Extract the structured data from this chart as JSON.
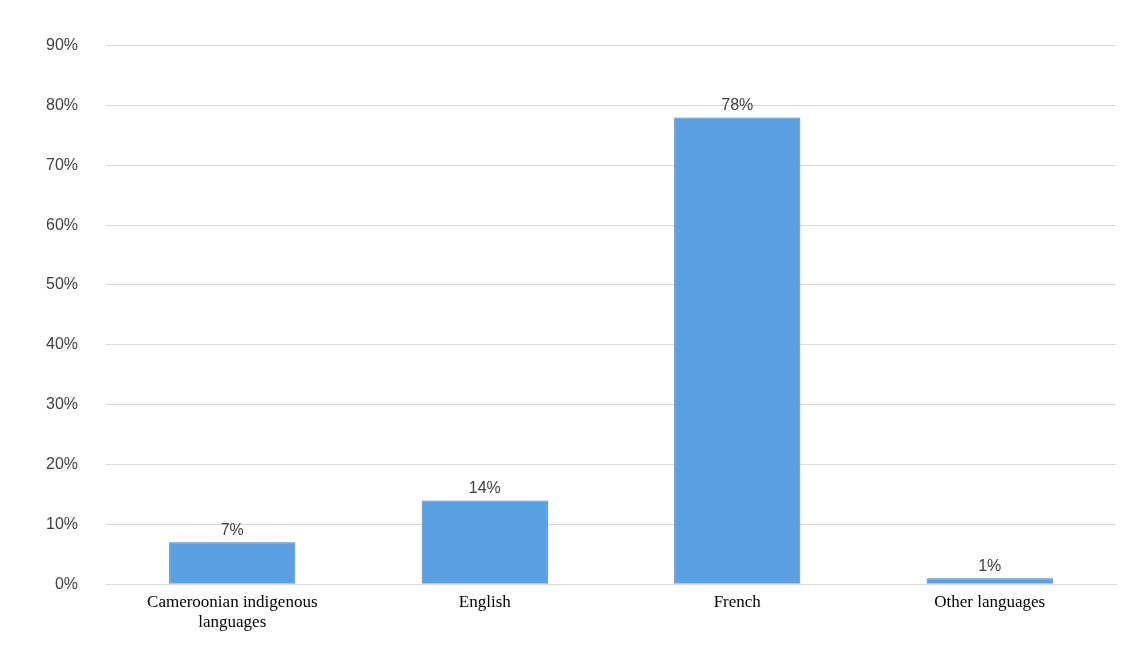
{
  "chart_data": {
    "type": "bar",
    "categories": [
      "Cameroonian indigenous languages",
      "English",
      "French",
      "Other languages"
    ],
    "values": [
      7,
      14,
      78,
      1
    ],
    "color": "#5a9fe0",
    "value_labels": [
      "7%",
      "14%",
      "78%",
      "1%"
    ],
    "ylim": [
      0,
      90
    ],
    "yticks": [
      {
        "value": 0,
        "label": "0%"
      },
      {
        "value": 10,
        "label": "10%"
      },
      {
        "value": 20,
        "label": "20%"
      },
      {
        "value": 30,
        "label": "30%"
      },
      {
        "value": 40,
        "label": "40%"
      },
      {
        "value": 50,
        "label": "50%"
      },
      {
        "value": 60,
        "label": "60%"
      },
      {
        "value": 70,
        "label": "70%"
      },
      {
        "value": 80,
        "label": "80%"
      },
      {
        "value": 90,
        "label": "90%"
      }
    ],
    "grid": "y",
    "legend": false
  }
}
